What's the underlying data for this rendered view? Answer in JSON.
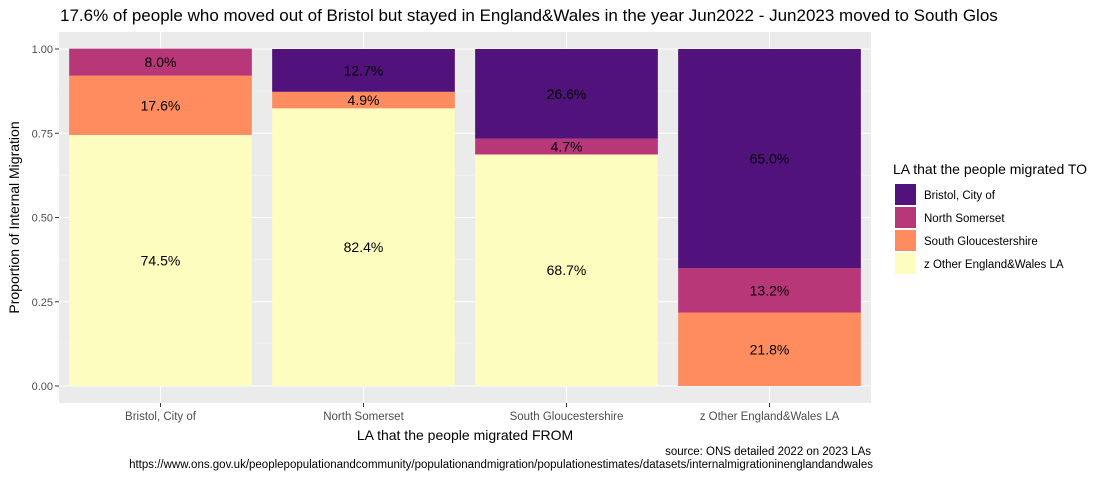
{
  "chart_data": {
    "type": "bar",
    "stacked": true,
    "title": "17.6% of people who moved out of Bristol but stayed in England&Wales in the year Jun2022 - Jun2023 moved to South Glos",
    "xlabel": "LA that the people migrated FROM",
    "ylabel": "Proportion of Internal Migration",
    "ylim": [
      0,
      1
    ],
    "yticks": [
      "0.00",
      "0.25",
      "0.50",
      "0.75",
      "1.00"
    ],
    "ytick_values": [
      0,
      0.25,
      0.5,
      0.75,
      1.0
    ],
    "categories": [
      "Bristol, City of",
      "North Somerset",
      "South Gloucestershire",
      "z Other England&Wales LA"
    ],
    "legend_title": "LA that the people migrated TO",
    "legend_position": "right",
    "grid": true,
    "series": [
      {
        "name": "z Other England&Wales LA",
        "color": "#FCFDBF",
        "values": [
          0.745,
          0.824,
          0.687,
          0.0
        ],
        "labels": [
          "74.5%",
          "82.4%",
          "68.7%",
          ""
        ]
      },
      {
        "name": "South Gloucestershire",
        "color": "#FE9F6D",
        "values": [
          0.176,
          0.049,
          0.0,
          0.218
        ],
        "labels": [
          "17.6%",
          "4.9%",
          "",
          "21.8%"
        ]
      },
      {
        "name": "North Somerset",
        "color": "#B73779",
        "values": [
          0.08,
          0.0,
          0.047,
          0.132
        ],
        "labels": [
          "8.0%",
          "",
          "4.7%",
          "13.2%"
        ]
      },
      {
        "name": "Bristol, City of",
        "color": "#51127C",
        "values": [
          0.0,
          0.127,
          0.266,
          0.65
        ],
        "labels": [
          "",
          "12.7%",
          "26.6%",
          "65.0%"
        ]
      }
    ],
    "legend_order": [
      "Bristol, City of",
      "North Somerset",
      "South Gloucestershire",
      "z Other England&Wales LA"
    ]
  },
  "caption": {
    "line1": "source: ONS detailed 2022 on 2023 LAs",
    "line2": "https://www.ons.gov.uk/peoplepopulationandcommunity/populationandmigration/populationestimates/datasets/internalmigrationinenglandandwales"
  },
  "colors": {
    "panel": "#EBEBEB",
    "grid": "#FFFFFF",
    "bar_fill_override_orange": "#FE8C5E"
  }
}
